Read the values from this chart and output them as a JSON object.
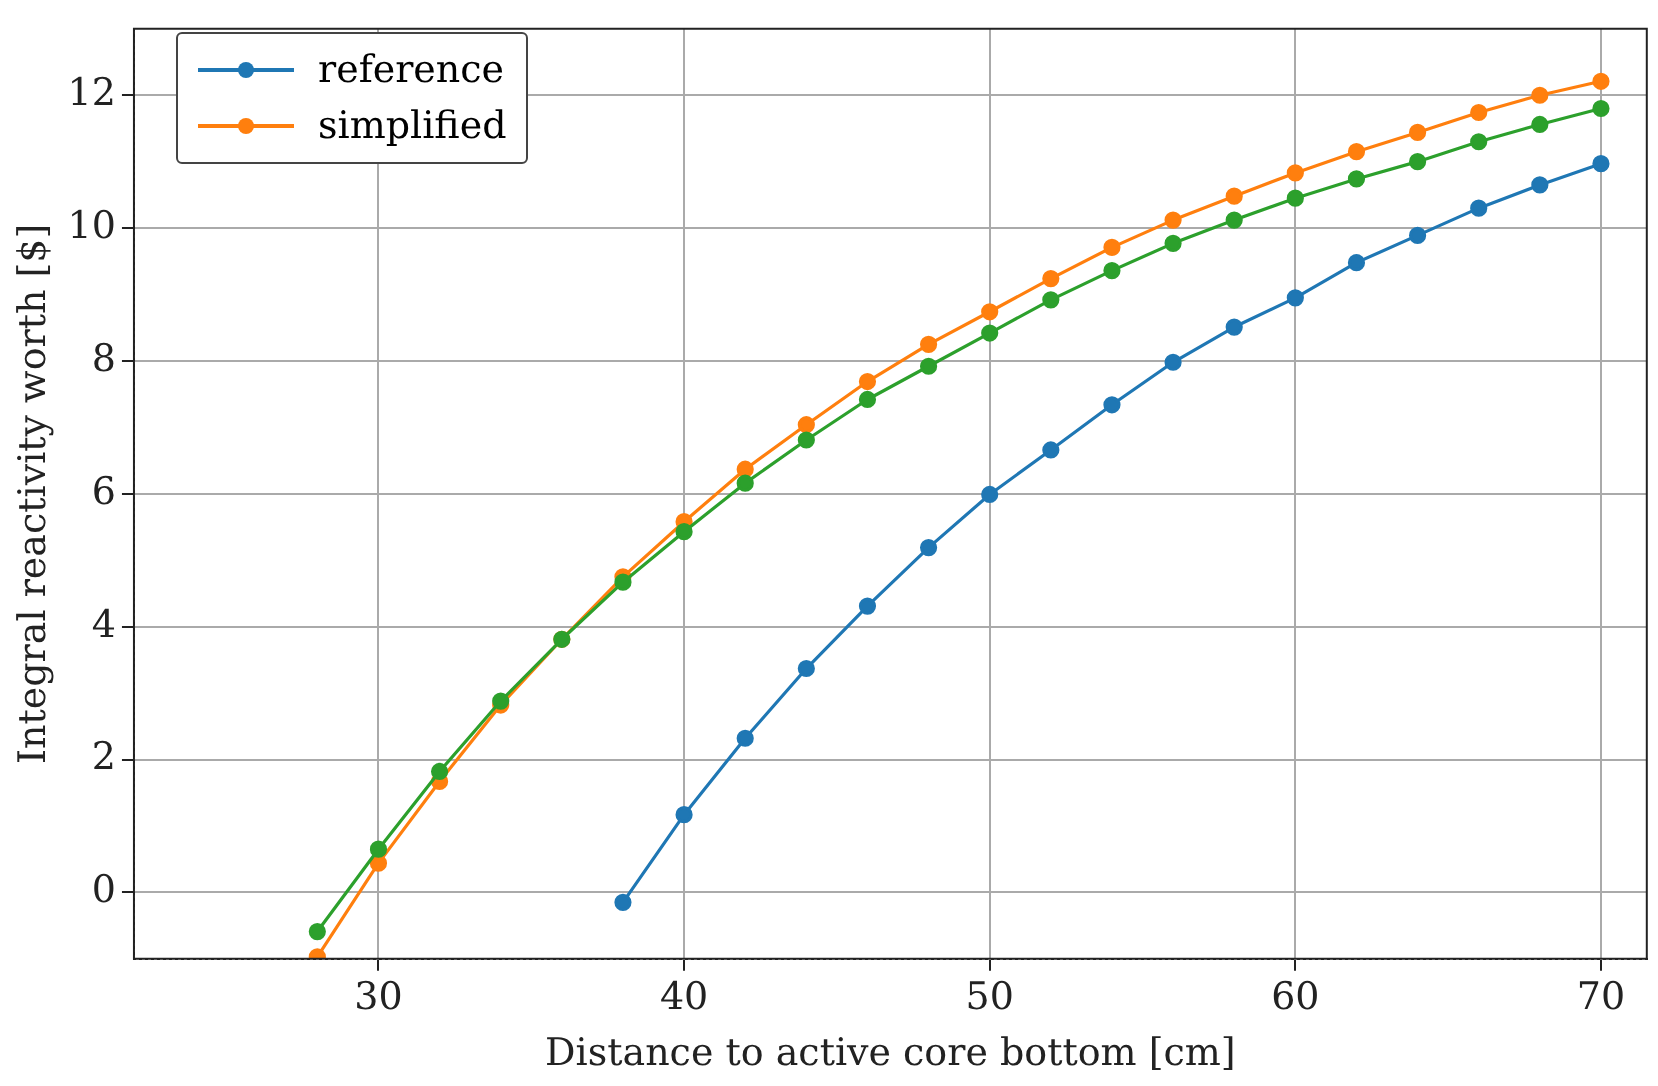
{
  "chart_data": {
    "type": "line",
    "xlabel": "Distance to active core bottom [cm]",
    "ylabel": "Integral reactivity worth [$]",
    "xlim": [
      22,
      71.5
    ],
    "ylim": [
      -1,
      13
    ],
    "xticks": [
      30,
      40,
      50,
      60,
      70
    ],
    "yticks": [
      0,
      2,
      4,
      6,
      8,
      10,
      12
    ],
    "grid": true,
    "legend": "top left",
    "marker": "circle",
    "line_style": "solid",
    "series": [
      {
        "name": "reference",
        "color": "#1f77b4",
        "x": [
          38,
          40,
          42,
          44,
          46,
          48,
          50,
          52,
          54,
          56,
          58,
          60,
          62,
          64,
          66,
          68,
          70
        ],
        "values": [
          -0.15,
          1.17,
          2.32,
          3.37,
          4.31,
          5.19,
          5.99,
          6.66,
          7.34,
          7.98,
          8.51,
          8.95,
          9.48,
          9.89,
          10.3,
          10.65,
          10.97
        ]
      },
      {
        "name": "simplified",
        "color": "#ff7f0e",
        "x": [
          28,
          30,
          32,
          34,
          36,
          38,
          40,
          42,
          44,
          46,
          48,
          50,
          52,
          54,
          56,
          58,
          60,
          62,
          64,
          66,
          68,
          70
        ],
        "values": [
          -0.97,
          0.44,
          1.67,
          2.82,
          3.81,
          4.75,
          5.58,
          6.37,
          7.04,
          7.69,
          8.25,
          8.74,
          9.24,
          9.71,
          10.12,
          10.48,
          10.83,
          11.15,
          11.44,
          11.74,
          12.0,
          12.21
        ]
      },
      {
        "color": "#2ca02c",
        "x": [
          28,
          30,
          32,
          34,
          36,
          38,
          40,
          42,
          44,
          46,
          48,
          50,
          52,
          54,
          56,
          58,
          60,
          62,
          64,
          66,
          68,
          70
        ],
        "values": [
          -0.59,
          0.65,
          1.82,
          2.88,
          3.81,
          4.67,
          5.43,
          6.16,
          6.81,
          7.42,
          7.92,
          8.42,
          8.92,
          9.36,
          9.77,
          10.12,
          10.45,
          10.74,
          11.0,
          11.3,
          11.56,
          11.8
        ]
      }
    ]
  }
}
